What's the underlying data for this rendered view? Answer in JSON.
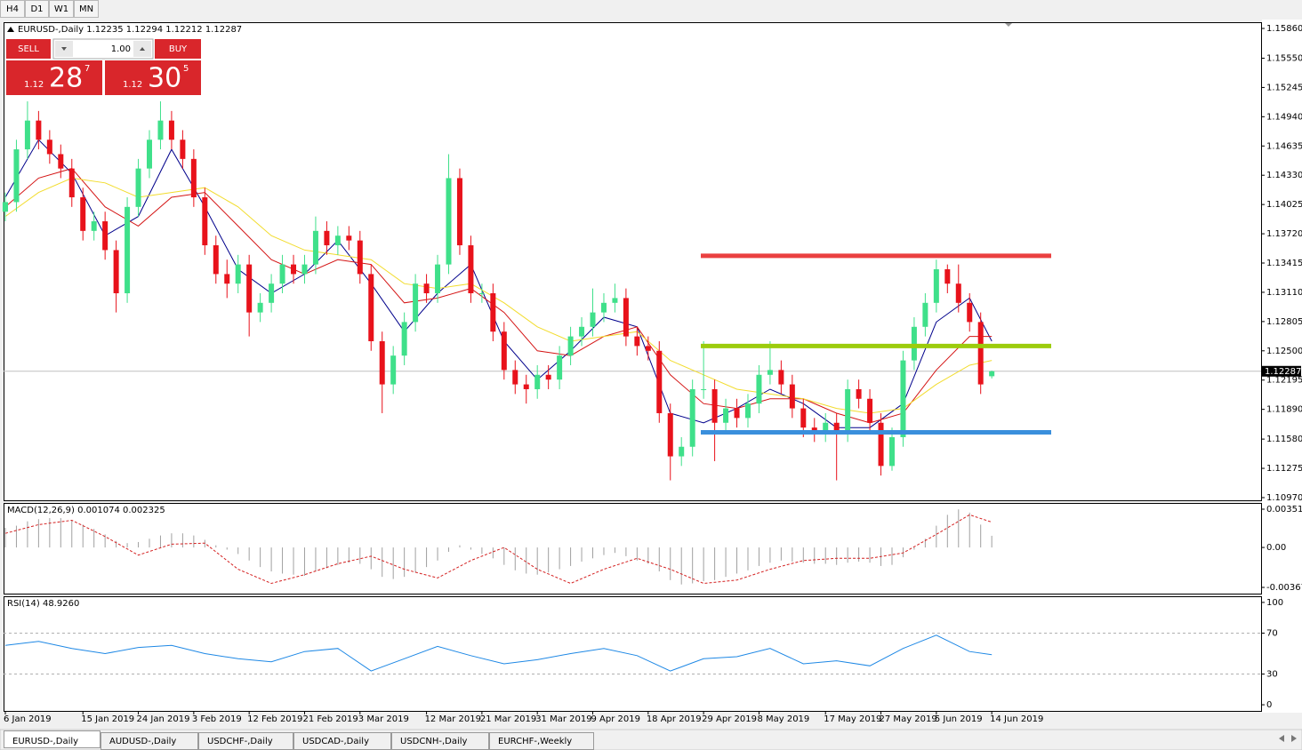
{
  "ui": {
    "toolbar": [
      "H4",
      "D1",
      "W1",
      "MN"
    ],
    "trade": {
      "sell": "SELL",
      "buy": "BUY",
      "lot": "1.00",
      "bid": {
        "big": "1.12",
        "pips": "28",
        "frac": "7"
      },
      "ask": {
        "big": "1.12",
        "pips": "30",
        "frac": "5"
      }
    },
    "tabs": [
      "EURUSD-,Daily",
      "AUDUSD-,Daily",
      "USDCHF-,Daily",
      "USDCAD-,Daily",
      "USDCNH-,Daily",
      "EURCHF-,Weekly"
    ]
  },
  "chart_data": [
    {
      "type": "candlestick",
      "title": "EURUSD-,Daily  1.12235 1.12294 1.12212 1.12287",
      "up_color": "#3fe08a",
      "down_color": "#e8121b",
      "xlim": [
        -0.16,
        113.3
      ],
      "ylim": [
        1.10942,
        1.15925
      ],
      "xticks": [
        {
          "value": 0,
          "label": "6 Jan 2019"
        },
        {
          "value": 7,
          "label": "15 Jan 2019"
        },
        {
          "value": 12,
          "label": "24 Jan 2019"
        },
        {
          "value": 17,
          "label": "3 Feb 2019"
        },
        {
          "value": 22,
          "label": "12 Feb 2019"
        },
        {
          "value": 27,
          "label": "21 Feb 2019"
        },
        {
          "value": 32,
          "label": "3 Mar 2019"
        },
        {
          "value": 38,
          "label": "12 Mar 2019"
        },
        {
          "value": 43,
          "label": "21 Mar 2019"
        },
        {
          "value": 48,
          "label": "31 Mar 2019"
        },
        {
          "value": 53,
          "label": "9 Apr 2019"
        },
        {
          "value": 58,
          "label": "18 Apr 2019"
        },
        {
          "value": 63,
          "label": "29 Apr 2019"
        },
        {
          "value": 68,
          "label": "8 May 2019"
        },
        {
          "value": 74,
          "label": "17 May 2019"
        },
        {
          "value": 79,
          "label": "27 May 2019"
        },
        {
          "value": 84,
          "label": "5 Jun 2019"
        },
        {
          "value": 89,
          "label": "14 Jun 2019"
        }
      ],
      "yticks": [
        {
          "value": 1.1586,
          "label": "1.15860"
        },
        {
          "value": 1.1555,
          "label": "1.15550"
        },
        1.15245,
        {
          "value": 1.1494,
          "label": "1.14940"
        },
        1.14635,
        {
          "value": 1.1433,
          "label": "1.14330"
        },
        1.14025,
        {
          "value": 1.1372,
          "label": "1.13720"
        },
        1.13415,
        {
          "value": 1.1311,
          "label": "1.13110"
        },
        1.12805,
        {
          "value": 1.125,
          "label": "1.12500"
        },
        1.12195,
        {
          "value": 1.1189,
          "label": "1.11890"
        },
        {
          "value": 1.1158,
          "label": "1.11580"
        },
        1.11275,
        {
          "value": 1.1097,
          "label": "1.10970"
        }
      ],
      "current": {
        "value": 1.12287,
        "label": "1.12287"
      },
      "ohlc": [
        [
          1.1395,
          1.1415,
          1.1385,
          1.1405
        ],
        [
          1.1405,
          1.147,
          1.1395,
          1.146
        ],
        [
          1.146,
          1.151,
          1.145,
          1.149
        ],
        [
          1.149,
          1.15,
          1.146,
          1.147
        ],
        [
          1.147,
          1.148,
          1.1445,
          1.1455
        ],
        [
          1.1455,
          1.1465,
          1.143,
          1.144
        ],
        [
          1.144,
          1.145,
          1.14,
          1.141
        ],
        [
          1.141,
          1.142,
          1.1365,
          1.1375
        ],
        [
          1.1375,
          1.1395,
          1.1365,
          1.1385
        ],
        [
          1.1385,
          1.1395,
          1.1345,
          1.1355
        ],
        [
          1.1355,
          1.1365,
          1.129,
          1.131
        ],
        [
          1.131,
          1.141,
          1.13,
          1.14
        ],
        [
          1.14,
          1.145,
          1.139,
          1.144
        ],
        [
          1.144,
          1.148,
          1.143,
          1.147
        ],
        [
          1.147,
          1.151,
          1.146,
          1.149
        ],
        [
          1.149,
          1.15,
          1.146,
          1.147
        ],
        [
          1.147,
          1.148,
          1.144,
          1.145
        ],
        [
          1.145,
          1.146,
          1.14,
          1.141
        ],
        [
          1.141,
          1.142,
          1.135,
          1.136
        ],
        [
          1.136,
          1.137,
          1.132,
          1.133
        ],
        [
          1.133,
          1.1345,
          1.1305,
          1.132
        ],
        [
          1.132,
          1.135,
          1.131,
          1.134
        ],
        [
          1.134,
          1.135,
          1.1265,
          1.129
        ],
        [
          1.129,
          1.131,
          1.128,
          1.13
        ],
        [
          1.13,
          1.133,
          1.129,
          1.132
        ],
        [
          1.132,
          1.135,
          1.131,
          1.134
        ],
        [
          1.134,
          1.135,
          1.132,
          1.133
        ],
        [
          1.133,
          1.135,
          1.132,
          1.134
        ],
        [
          1.134,
          1.139,
          1.133,
          1.1375
        ],
        [
          1.1375,
          1.1385,
          1.135,
          1.136
        ],
        [
          1.136,
          1.138,
          1.135,
          1.137
        ],
        [
          1.137,
          1.138,
          1.1355,
          1.1365
        ],
        [
          1.1365,
          1.1375,
          1.132,
          1.133
        ],
        [
          1.133,
          1.134,
          1.125,
          1.126
        ],
        [
          1.126,
          1.127,
          1.1185,
          1.1215
        ],
        [
          1.1215,
          1.1255,
          1.1205,
          1.1245
        ],
        [
          1.1245,
          1.129,
          1.1235,
          1.128
        ],
        [
          1.128,
          1.133,
          1.127,
          1.132
        ],
        [
          1.132,
          1.133,
          1.13,
          1.131
        ],
        [
          1.131,
          1.135,
          1.13,
          1.134
        ],
        [
          1.134,
          1.1455,
          1.133,
          1.143
        ],
        [
          1.143,
          1.144,
          1.135,
          1.136
        ],
        [
          1.136,
          1.137,
          1.13,
          1.131
        ],
        [
          1.131,
          1.132,
          1.13,
          1.131
        ],
        [
          1.131,
          1.132,
          1.126,
          1.127
        ],
        [
          1.127,
          1.128,
          1.122,
          1.123
        ],
        [
          1.123,
          1.124,
          1.1205,
          1.1215
        ],
        [
          1.1215,
          1.1225,
          1.1195,
          1.121
        ],
        [
          1.121,
          1.1235,
          1.12,
          1.1225
        ],
        [
          1.1225,
          1.1235,
          1.121,
          1.122
        ],
        [
          1.122,
          1.1255,
          1.121,
          1.1245
        ],
        [
          1.1245,
          1.1275,
          1.1235,
          1.1265
        ],
        [
          1.1265,
          1.1285,
          1.1255,
          1.1275
        ],
        [
          1.1275,
          1.1315,
          1.1265,
          1.129
        ],
        [
          1.129,
          1.131,
          1.128,
          1.13
        ],
        [
          1.13,
          1.132,
          1.129,
          1.1305
        ],
        [
          1.1305,
          1.1315,
          1.1255,
          1.1265
        ],
        [
          1.1265,
          1.1275,
          1.1245,
          1.1255
        ],
        [
          1.1255,
          1.1265,
          1.124,
          1.125
        ],
        [
          1.125,
          1.126,
          1.1175,
          1.1185
        ],
        [
          1.1185,
          1.1195,
          1.1115,
          1.114
        ],
        [
          1.114,
          1.116,
          1.113,
          1.115
        ],
        [
          1.115,
          1.122,
          1.114,
          1.121
        ],
        [
          1.121,
          1.126,
          1.12,
          1.121
        ],
        [
          1.121,
          1.122,
          1.1135,
          1.1175
        ],
        [
          1.1175,
          1.12,
          1.1165,
          1.119
        ],
        [
          1.119,
          1.12,
          1.117,
          1.118
        ],
        [
          1.118,
          1.1205,
          1.117,
          1.1195
        ],
        [
          1.1195,
          1.1235,
          1.1185,
          1.1225
        ],
        [
          1.1225,
          1.126,
          1.1215,
          1.123
        ],
        [
          1.123,
          1.124,
          1.1205,
          1.1215
        ],
        [
          1.1215,
          1.1225,
          1.118,
          1.119
        ],
        [
          1.119,
          1.12,
          1.116,
          1.117
        ],
        [
          1.117,
          1.118,
          1.1155,
          1.1165
        ],
        [
          1.1165,
          1.1185,
          1.1155,
          1.1175
        ],
        [
          1.1175,
          1.1185,
          1.1115,
          1.1165
        ],
        [
          1.1165,
          1.122,
          1.1155,
          1.121
        ],
        [
          1.121,
          1.122,
          1.119,
          1.12
        ],
        [
          1.12,
          1.121,
          1.1165,
          1.1175
        ],
        [
          1.1175,
          1.1185,
          1.112,
          1.113
        ],
        [
          1.113,
          1.117,
          1.1125,
          1.116
        ],
        [
          1.116,
          1.125,
          1.115,
          1.124
        ],
        [
          1.124,
          1.1285,
          1.123,
          1.1275
        ],
        [
          1.1275,
          1.131,
          1.1265,
          1.13
        ],
        [
          1.13,
          1.1345,
          1.129,
          1.1335
        ],
        [
          1.1335,
          1.134,
          1.131,
          1.132
        ],
        [
          1.132,
          1.134,
          1.129,
          1.13
        ],
        [
          1.13,
          1.131,
          1.127,
          1.128
        ],
        [
          1.128,
          1.129,
          1.1205,
          1.1215
        ],
        [
          1.12235,
          1.12294,
          1.12212,
          1.12287
        ]
      ],
      "series": [
        {
          "color": "#00008b",
          "x": [
            0,
            3,
            6,
            9,
            12,
            15,
            18,
            21,
            24,
            27,
            30,
            33,
            36,
            39,
            42,
            45,
            48,
            51,
            54,
            57,
            60,
            63,
            66,
            69,
            72,
            75,
            78,
            81,
            84,
            87,
            89
          ],
          "values": [
            1.141,
            1.147,
            1.1435,
            1.137,
            1.139,
            1.146,
            1.14,
            1.1335,
            1.131,
            1.133,
            1.1365,
            1.132,
            1.127,
            1.131,
            1.134,
            1.126,
            1.122,
            1.125,
            1.1285,
            1.1275,
            1.1185,
            1.1175,
            1.119,
            1.121,
            1.1195,
            1.117,
            1.117,
            1.1195,
            1.128,
            1.1305,
            1.126
          ]
        },
        {
          "color": "#d41414",
          "x": [
            0,
            3,
            6,
            9,
            12,
            15,
            18,
            21,
            24,
            27,
            30,
            33,
            36,
            39,
            42,
            45,
            48,
            51,
            54,
            57,
            60,
            63,
            66,
            69,
            72,
            75,
            78,
            81,
            84,
            87,
            89
          ],
          "values": [
            1.14,
            1.143,
            1.144,
            1.14,
            1.138,
            1.141,
            1.1415,
            1.138,
            1.1345,
            1.133,
            1.1345,
            1.134,
            1.13,
            1.1305,
            1.1315,
            1.129,
            1.125,
            1.1245,
            1.1265,
            1.1275,
            1.1225,
            1.1195,
            1.119,
            1.12,
            1.12,
            1.1185,
            1.1175,
            1.1185,
            1.123,
            1.1265,
            1.1265
          ]
        },
        {
          "color": "#f2dc2e",
          "x": [
            0,
            3,
            6,
            9,
            12,
            15,
            18,
            21,
            24,
            27,
            30,
            33,
            36,
            39,
            42,
            45,
            48,
            51,
            54,
            57,
            60,
            63,
            66,
            69,
            72,
            75,
            78,
            81,
            84,
            87,
            89
          ],
          "values": [
            1.139,
            1.1415,
            1.143,
            1.1425,
            1.141,
            1.1415,
            1.142,
            1.14,
            1.137,
            1.1355,
            1.135,
            1.1345,
            1.132,
            1.1315,
            1.132,
            1.13,
            1.1275,
            1.126,
            1.1265,
            1.127,
            1.124,
            1.1225,
            1.121,
            1.1205,
            1.12,
            1.119,
            1.1185,
            1.119,
            1.1215,
            1.1235,
            1.124
          ]
        }
      ],
      "levels": [
        {
          "value": 1.1349,
          "color": "#ea4040"
        },
        {
          "value": 1.1255,
          "color": "#9ccc0c"
        },
        {
          "value": 1.1165,
          "color": "#3a8fdc"
        }
      ]
    },
    {
      "type": "macd",
      "title": "MACD(12,26,9) 0.001074 0.002325",
      "color": "#a0a0a0",
      "xlim": [
        -0.16,
        113.3
      ],
      "ylim": [
        -0.00424,
        0.00409
      ],
      "yticks": [
        0.003518,
        {
          "value": 0,
          "label": "0.00"
        },
        -0.00367
      ],
      "values": [
        0.0018,
        0.002,
        0.0024,
        0.0026,
        0.0027,
        0.0027,
        0.0025,
        0.0021,
        0.0017,
        0.0012,
        0.0006,
        0.0004,
        0.0005,
        0.0008,
        0.0011,
        0.0013,
        0.0013,
        0.0011,
        0.0007,
        0.0002,
        -0.0002,
        -0.0006,
        -0.0012,
        -0.0018,
        -0.0022,
        -0.0024,
        -0.0025,
        -0.0026,
        -0.0022,
        -0.0019,
        -0.0016,
        -0.0014,
        -0.0015,
        -0.002,
        -0.0027,
        -0.0029,
        -0.0027,
        -0.0023,
        -0.0018,
        -0.0012,
        -0.0004,
        0.0002,
        -0.0002,
        -0.0006,
        -0.001,
        -0.0016,
        -0.0021,
        -0.0024,
        -0.0025,
        -0.0023,
        -0.002,
        -0.0017,
        -0.0013,
        -0.001,
        -0.0007,
        -0.0005,
        -0.0008,
        -0.0012,
        -0.0015,
        -0.0022,
        -0.003,
        -0.0034,
        -0.0033,
        -0.0031,
        -0.003,
        -0.0027,
        -0.0024,
        -0.0021,
        -0.0017,
        -0.0014,
        -0.0012,
        -0.0013,
        -0.0014,
        -0.0015,
        -0.0015,
        -0.0016,
        -0.0014,
        -0.0013,
        -0.0014,
        -0.0017,
        -0.0016,
        -0.0009,
        -0.0002,
        0.0008,
        0.002,
        0.003,
        0.0035,
        0.0032,
        0.0021,
        0.001074
      ],
      "signal": {
        "color": "#d42020",
        "x": [
          0,
          3,
          6,
          9,
          12,
          15,
          18,
          21,
          24,
          27,
          30,
          33,
          36,
          39,
          42,
          45,
          48,
          51,
          54,
          57,
          60,
          63,
          66,
          69,
          72,
          75,
          78,
          81,
          84,
          87,
          89
        ],
        "values": [
          0.0013,
          0.0021,
          0.0025,
          0.001,
          -0.0007,
          0.0003,
          0.0004,
          -0.002,
          -0.0033,
          -0.0025,
          -0.0015,
          -0.0008,
          -0.002,
          -0.0028,
          -0.0012,
          0,
          -0.002,
          -0.0033,
          -0.002,
          -0.001,
          -0.002,
          -0.0033,
          -0.003,
          -0.002,
          -0.0012,
          -0.001,
          -0.001,
          -0.0005,
          0.0012,
          0.003,
          0.002325
        ]
      }
    },
    {
      "type": "line",
      "title": "RSI(14) 48.9260",
      "color": "#1e88e5",
      "xlim": [
        -0.16,
        113.3
      ],
      "ylim": [
        -6,
        106
      ],
      "yticks": [
        100,
        70,
        30,
        0
      ],
      "levels": [
        70,
        30
      ],
      "x": [
        0,
        3,
        6,
        9,
        12,
        15,
        18,
        21,
        24,
        27,
        30,
        33,
        36,
        39,
        42,
        45,
        48,
        51,
        54,
        57,
        60,
        63,
        66,
        69,
        72,
        75,
        78,
        81,
        84,
        87,
        89
      ],
      "values": [
        58,
        62,
        55,
        50,
        56,
        58,
        50,
        45,
        42,
        52,
        55,
        33,
        45,
        57,
        48,
        40,
        44,
        50,
        55,
        48,
        33,
        45,
        47,
        55,
        40,
        43,
        38,
        55,
        68,
        52,
        48.926
      ]
    }
  ]
}
